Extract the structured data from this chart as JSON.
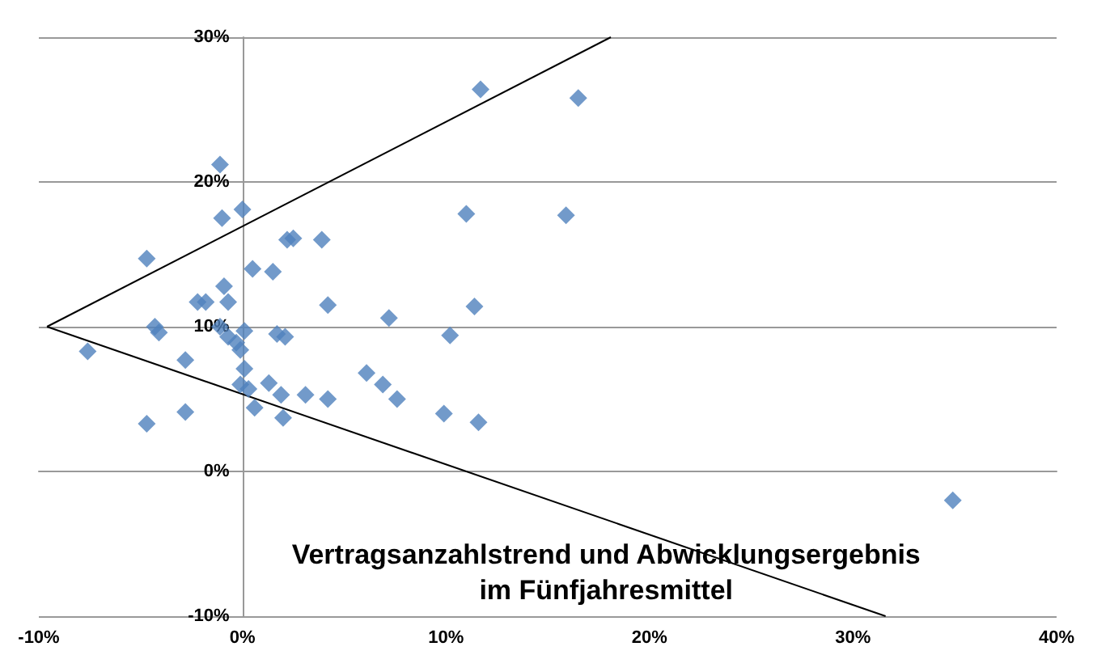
{
  "chart_data": {
    "type": "scatter",
    "xlabel": "Vertragsanzahlstrend und Abwicklungsergebnis\nim Fünfjahresmittel",
    "xlim": [
      -10,
      40
    ],
    "ylim": [
      -10,
      30
    ],
    "xticks": [
      {
        "value": -10,
        "label": "-10%"
      },
      {
        "value": 0,
        "label": "0%"
      },
      {
        "value": 10,
        "label": "10%"
      },
      {
        "value": 20,
        "label": "20%"
      },
      {
        "value": 30,
        "label": "30%"
      },
      {
        "value": 40,
        "label": "40%"
      }
    ],
    "yticks": [
      {
        "value": -10,
        "label": "-10%"
      },
      {
        "value": 0,
        "label": "0%"
      },
      {
        "value": 10,
        "label": "10%"
      },
      {
        "value": 20,
        "label": "20%"
      },
      {
        "value": 30,
        "label": "30%"
      }
    ],
    "grid": "y",
    "marker": "diamond",
    "series": [
      {
        "color": "#4f81bd",
        "x": [
          11.7,
          16.5,
          -1.1,
          -1.0,
          0,
          11.0,
          15.9,
          2.2,
          2.5,
          3.9,
          -4.7,
          0.5,
          1.5,
          -0.9,
          -2.2,
          -1.8,
          -0.7,
          4.2,
          11.4,
          7.2,
          -4.3,
          -4.1,
          -1.1,
          0.1,
          -0.7,
          -0.3,
          -0.1,
          1.7,
          2.1,
          10.2,
          -7.6,
          -2.8,
          0.1,
          6.1,
          6.9,
          7.6,
          1.3,
          -0.1,
          0.3,
          1.9,
          3.1,
          4.2,
          0.6,
          9.9,
          -2.8,
          -4.7,
          2.0,
          11.6,
          34.9
        ],
        "values": [
          26.4,
          25.8,
          21.2,
          17.5,
          18.1,
          17.8,
          17.7,
          16.0,
          16.1,
          16.0,
          14.7,
          14.0,
          13.8,
          12.8,
          11.7,
          11.7,
          11.7,
          11.5,
          11.4,
          10.6,
          10.0,
          9.6,
          10.0,
          9.7,
          9.3,
          8.9,
          8.4,
          9.5,
          9.3,
          9.4,
          8.3,
          7.7,
          7.1,
          6.8,
          6.0,
          5.0,
          6.1,
          6.0,
          5.7,
          5.3,
          5.3,
          5.0,
          4.4,
          4.0,
          4.1,
          3.3,
          3.7,
          3.4,
          -2.0
        ]
      },
      {
        "type": "line",
        "color": "#000000",
        "marker": "none",
        "x": [
          -9.6,
          18.1
        ],
        "values": [
          10,
          30
        ]
      },
      {
        "type": "line",
        "color": "#000000",
        "marker": "none",
        "x": [
          -9.6,
          31.6
        ],
        "values": [
          10,
          -10
        ]
      }
    ]
  }
}
